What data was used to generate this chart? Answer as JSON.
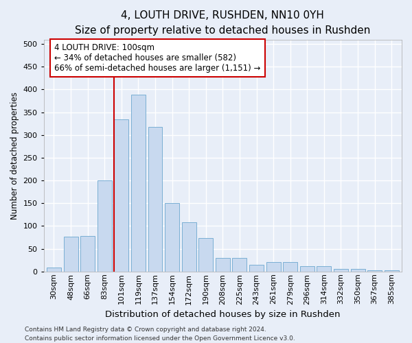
{
  "title": "4, LOUTH DRIVE, RUSHDEN, NN10 0YH",
  "subtitle": "Size of property relative to detached houses in Rushden",
  "xlabel": "Distribution of detached houses by size in Rushden",
  "ylabel": "Number of detached properties",
  "bar_labels": [
    "30sqm",
    "48sqm",
    "66sqm",
    "83sqm",
    "101sqm",
    "119sqm",
    "137sqm",
    "154sqm",
    "172sqm",
    "190sqm",
    "208sqm",
    "225sqm",
    "243sqm",
    "261sqm",
    "279sqm",
    "296sqm",
    "314sqm",
    "332sqm",
    "350sqm",
    "367sqm",
    "385sqm"
  ],
  "bar_values": [
    9,
    77,
    78,
    200,
    335,
    388,
    318,
    150,
    108,
    73,
    30,
    30,
    15,
    20,
    20,
    12,
    12,
    5,
    5,
    2,
    3
  ],
  "bar_color": "#c8d9ef",
  "bar_edge_color": "#7aafd4",
  "property_bar_index": 4,
  "vline_color": "#cc0000",
  "annotation_line1": "4 LOUTH DRIVE: 100sqm",
  "annotation_line2": "← 34% of detached houses are smaller (582)",
  "annotation_line3": "66% of semi-detached houses are larger (1,151) →",
  "annotation_box_facecolor": "#ffffff",
  "annotation_box_edgecolor": "#cc0000",
  "ylim": [
    0,
    510
  ],
  "yticks": [
    0,
    50,
    100,
    150,
    200,
    250,
    300,
    350,
    400,
    450,
    500
  ],
  "background_color": "#e8eef8",
  "grid_color": "#ffffff",
  "footer_line1": "Contains HM Land Registry data © Crown copyright and database right 2024.",
  "footer_line2": "Contains public sector information licensed under the Open Government Licence v3.0.",
  "title_fontsize": 11,
  "subtitle_fontsize": 9.5,
  "xlabel_fontsize": 9.5,
  "ylabel_fontsize": 8.5,
  "tick_fontsize": 8,
  "annotation_fontsize": 8.5,
  "footer_fontsize": 6.5
}
